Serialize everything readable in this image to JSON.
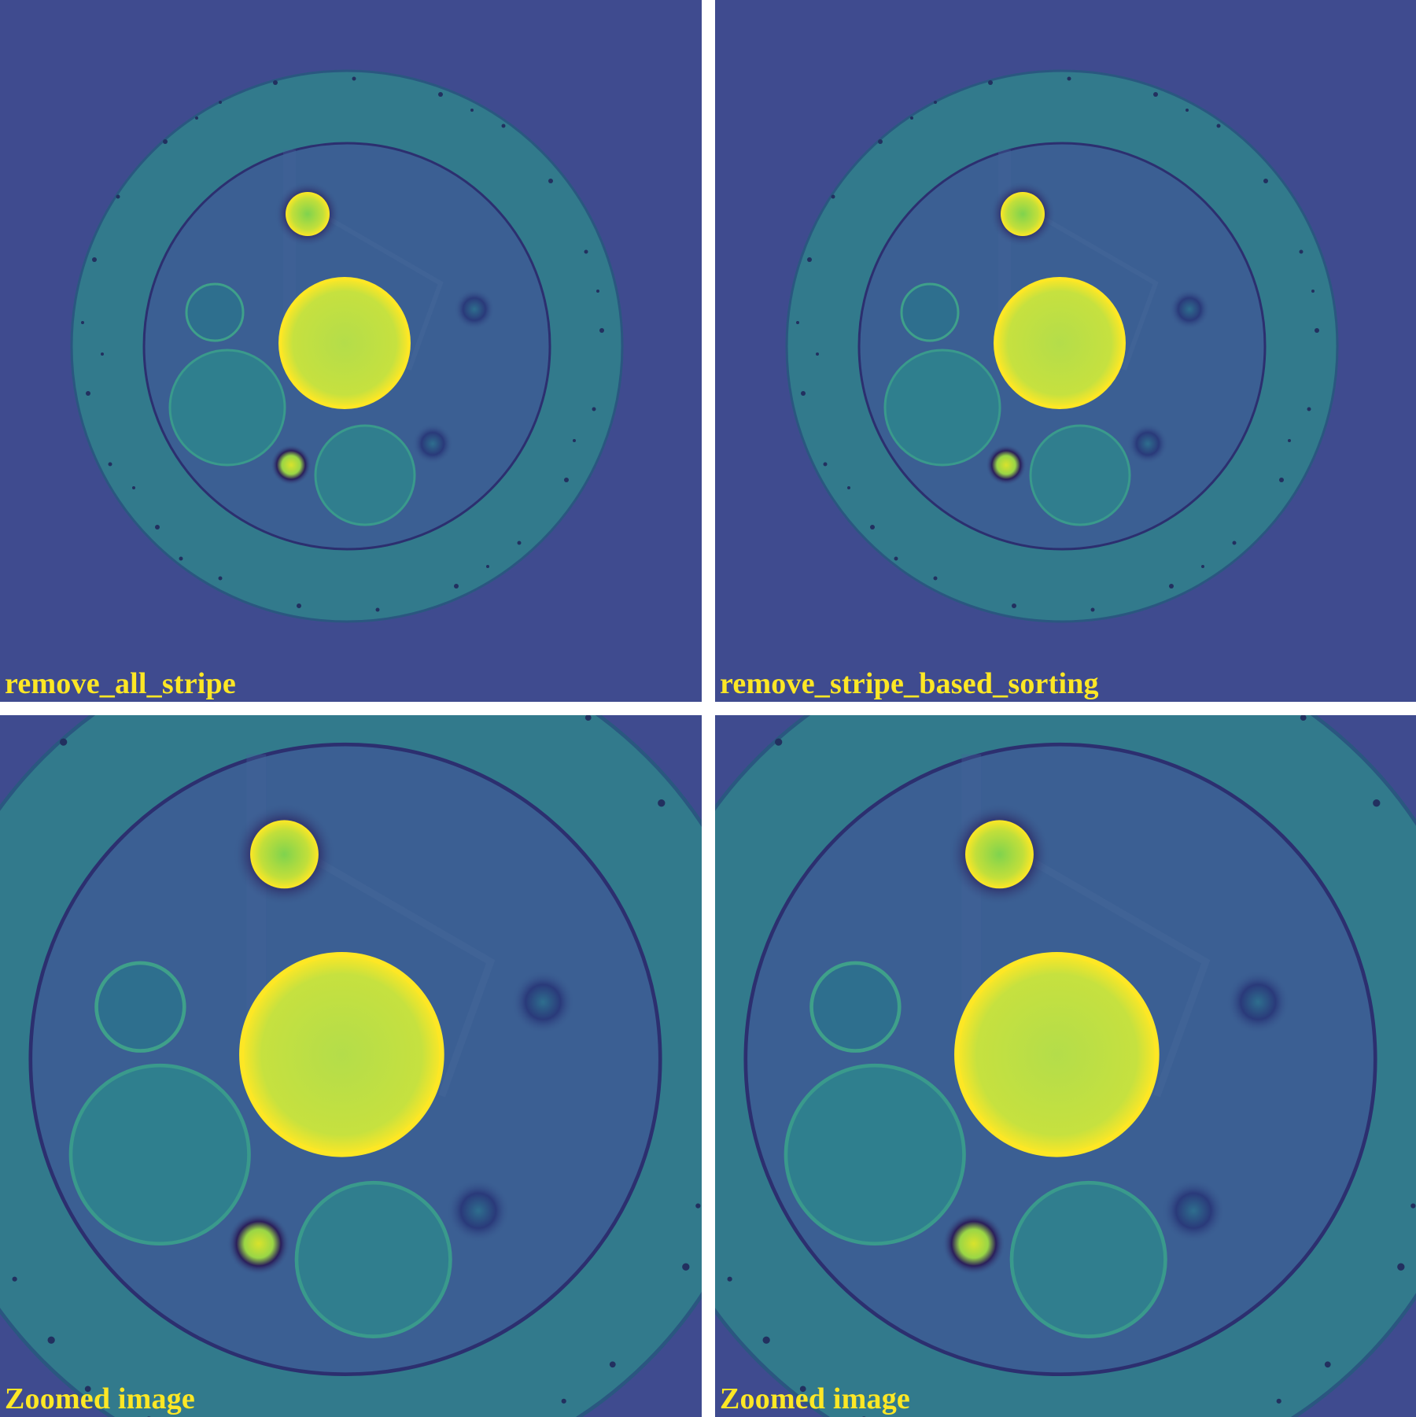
{
  "panels": {
    "top_left": {
      "caption": "remove_all_stripe"
    },
    "top_right": {
      "caption": "remove_stripe_based_sorting"
    },
    "bottom_left": {
      "caption": "Zoomed image"
    },
    "bottom_right": {
      "caption": "Zoomed image"
    }
  },
  "colors": {
    "background": "#3f4b8f",
    "ring": "#327a8c",
    "inner_disk": "#3b5f93",
    "bright_disk": "#c9e241",
    "bright_rim": "#fde725",
    "medium_disk": "#2f7f8e",
    "dark_halo": "#2b1e5a",
    "caption": "#fde725",
    "separator": "#ffffff"
  }
}
